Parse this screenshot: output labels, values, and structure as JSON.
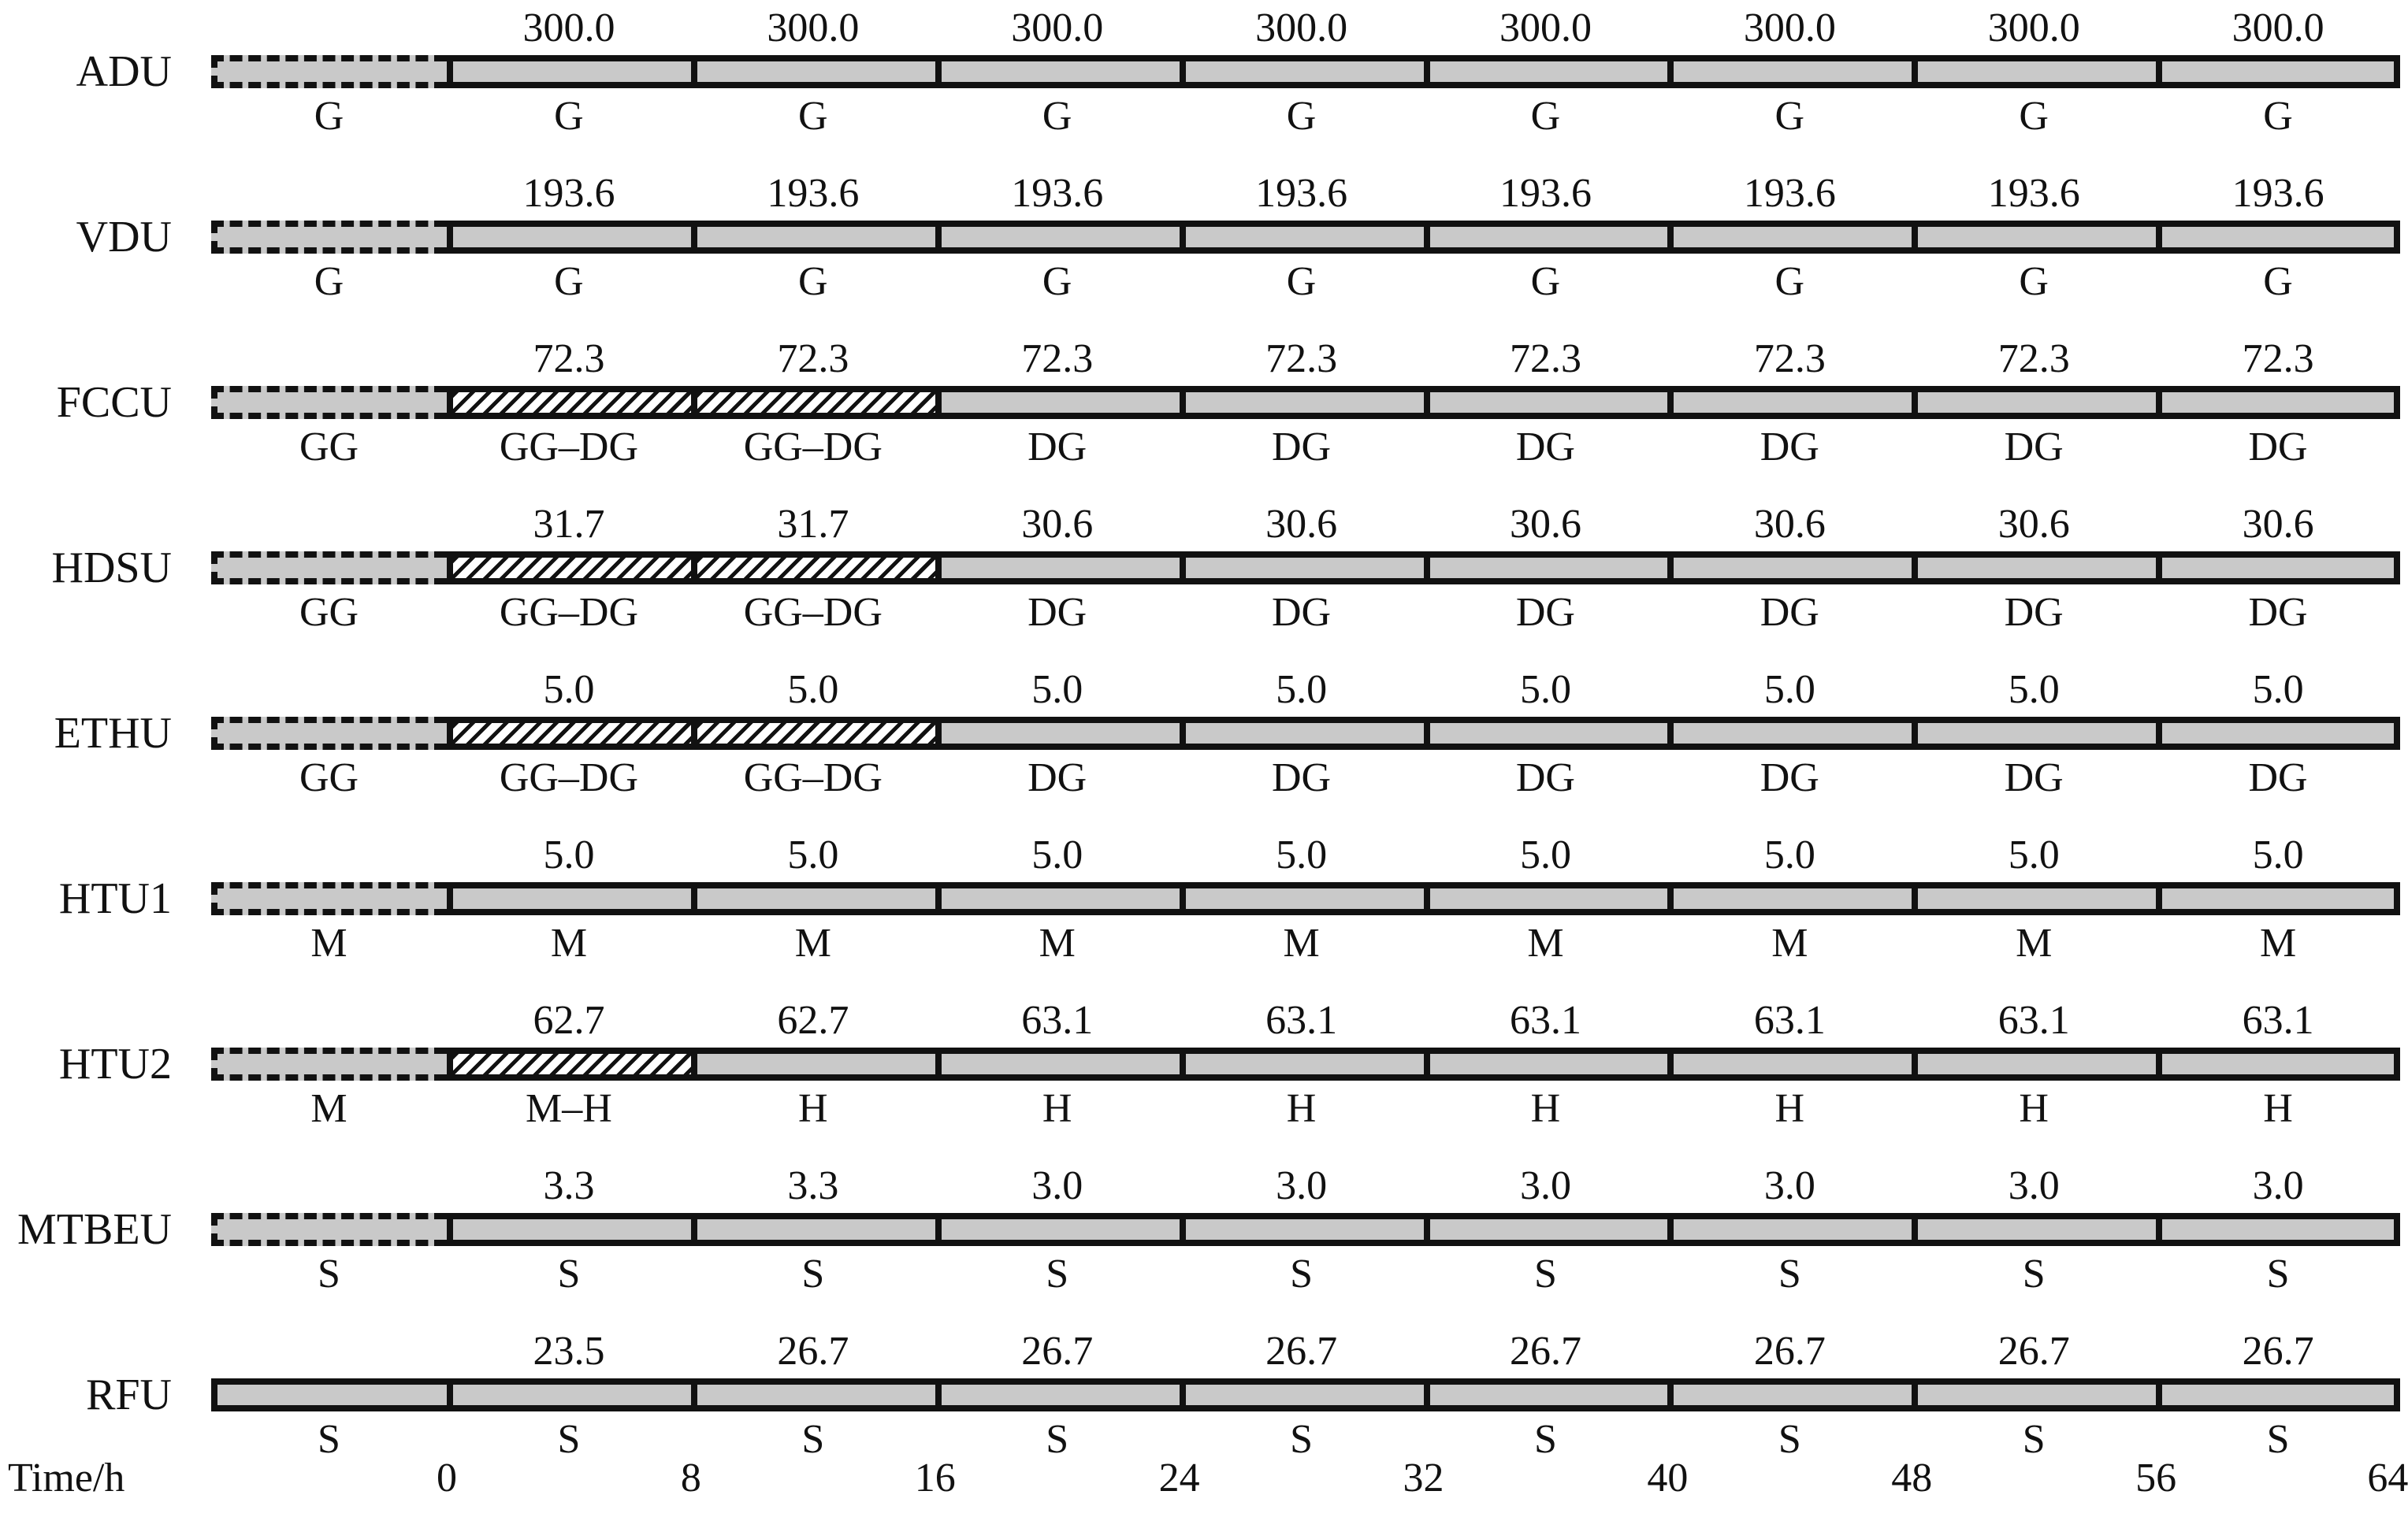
{
  "chart_data": {
    "type": "gantt",
    "title": "",
    "time_axis": {
      "label": "Time/h",
      "ticks": [
        "0",
        "8",
        "16",
        "24",
        "32",
        "40",
        "48",
        "56",
        "64"
      ],
      "hours_per_segment": 8,
      "range_hours": [
        0,
        64
      ],
      "has_pre_horizon_segment": true
    },
    "style": {
      "bar_fill": "#c9c9c9",
      "border_color": "#111111",
      "hatch": "black diagonal stripes on white",
      "pre_segment_border": "dashed (solid for RFU)"
    },
    "units": [
      {
        "name": "ADU",
        "pre": {
          "mode": "G",
          "style": "dashed"
        },
        "segments": [
          {
            "value": "300.0",
            "mode": "G",
            "style": "solid"
          },
          {
            "value": "300.0",
            "mode": "G",
            "style": "solid"
          },
          {
            "value": "300.0",
            "mode": "G",
            "style": "solid"
          },
          {
            "value": "300.0",
            "mode": "G",
            "style": "solid"
          },
          {
            "value": "300.0",
            "mode": "G",
            "style": "solid"
          },
          {
            "value": "300.0",
            "mode": "G",
            "style": "solid"
          },
          {
            "value": "300.0",
            "mode": "G",
            "style": "solid"
          },
          {
            "value": "300.0",
            "mode": "G",
            "style": "solid"
          }
        ]
      },
      {
        "name": "VDU",
        "pre": {
          "mode": "G",
          "style": "dashed"
        },
        "segments": [
          {
            "value": "193.6",
            "mode": "G",
            "style": "solid"
          },
          {
            "value": "193.6",
            "mode": "G",
            "style": "solid"
          },
          {
            "value": "193.6",
            "mode": "G",
            "style": "solid"
          },
          {
            "value": "193.6",
            "mode": "G",
            "style": "solid"
          },
          {
            "value": "193.6",
            "mode": "G",
            "style": "solid"
          },
          {
            "value": "193.6",
            "mode": "G",
            "style": "solid"
          },
          {
            "value": "193.6",
            "mode": "G",
            "style": "solid"
          },
          {
            "value": "193.6",
            "mode": "G",
            "style": "solid"
          }
        ]
      },
      {
        "name": "FCCU",
        "pre": {
          "mode": "GG",
          "style": "dashed"
        },
        "segments": [
          {
            "value": "72.3",
            "mode": "GG–DG",
            "style": "hatched"
          },
          {
            "value": "72.3",
            "mode": "GG–DG",
            "style": "hatched"
          },
          {
            "value": "72.3",
            "mode": "DG",
            "style": "solid"
          },
          {
            "value": "72.3",
            "mode": "DG",
            "style": "solid"
          },
          {
            "value": "72.3",
            "mode": "DG",
            "style": "solid"
          },
          {
            "value": "72.3",
            "mode": "DG",
            "style": "solid"
          },
          {
            "value": "72.3",
            "mode": "DG",
            "style": "solid"
          },
          {
            "value": "72.3",
            "mode": "DG",
            "style": "solid"
          }
        ]
      },
      {
        "name": "HDSU",
        "pre": {
          "mode": "GG",
          "style": "dashed"
        },
        "segments": [
          {
            "value": "31.7",
            "mode": "GG–DG",
            "style": "hatched"
          },
          {
            "value": "31.7",
            "mode": "GG–DG",
            "style": "hatched"
          },
          {
            "value": "30.6",
            "mode": "DG",
            "style": "solid"
          },
          {
            "value": "30.6",
            "mode": "DG",
            "style": "solid"
          },
          {
            "value": "30.6",
            "mode": "DG",
            "style": "solid"
          },
          {
            "value": "30.6",
            "mode": "DG",
            "style": "solid"
          },
          {
            "value": "30.6",
            "mode": "DG",
            "style": "solid"
          },
          {
            "value": "30.6",
            "mode": "DG",
            "style": "solid"
          }
        ]
      },
      {
        "name": "ETHU",
        "pre": {
          "mode": "GG",
          "style": "dashed"
        },
        "segments": [
          {
            "value": "5.0",
            "mode": "GG–DG",
            "style": "hatched"
          },
          {
            "value": "5.0",
            "mode": "GG–DG",
            "style": "hatched"
          },
          {
            "value": "5.0",
            "mode": "DG",
            "style": "solid"
          },
          {
            "value": "5.0",
            "mode": "DG",
            "style": "solid"
          },
          {
            "value": "5.0",
            "mode": "DG",
            "style": "solid"
          },
          {
            "value": "5.0",
            "mode": "DG",
            "style": "solid"
          },
          {
            "value": "5.0",
            "mode": "DG",
            "style": "solid"
          },
          {
            "value": "5.0",
            "mode": "DG",
            "style": "solid"
          }
        ]
      },
      {
        "name": "HTU1",
        "pre": {
          "mode": "M",
          "style": "dashed"
        },
        "segments": [
          {
            "value": "5.0",
            "mode": "M",
            "style": "solid"
          },
          {
            "value": "5.0",
            "mode": "M",
            "style": "solid"
          },
          {
            "value": "5.0",
            "mode": "M",
            "style": "solid"
          },
          {
            "value": "5.0",
            "mode": "M",
            "style": "solid"
          },
          {
            "value": "5.0",
            "mode": "M",
            "style": "solid"
          },
          {
            "value": "5.0",
            "mode": "M",
            "style": "solid"
          },
          {
            "value": "5.0",
            "mode": "M",
            "style": "solid"
          },
          {
            "value": "5.0",
            "mode": "M",
            "style": "solid"
          }
        ]
      },
      {
        "name": "HTU2",
        "pre": {
          "mode": "M",
          "style": "dashed"
        },
        "segments": [
          {
            "value": "62.7",
            "mode": "M–H",
            "style": "hatched"
          },
          {
            "value": "62.7",
            "mode": "H",
            "style": "solid"
          },
          {
            "value": "63.1",
            "mode": "H",
            "style": "solid"
          },
          {
            "value": "63.1",
            "mode": "H",
            "style": "solid"
          },
          {
            "value": "63.1",
            "mode": "H",
            "style": "solid"
          },
          {
            "value": "63.1",
            "mode": "H",
            "style": "solid"
          },
          {
            "value": "63.1",
            "mode": "H",
            "style": "solid"
          },
          {
            "value": "63.1",
            "mode": "H",
            "style": "solid"
          }
        ]
      },
      {
        "name": "MTBEU",
        "pre": {
          "mode": "S",
          "style": "dashed"
        },
        "segments": [
          {
            "value": "3.3",
            "mode": "S",
            "style": "solid"
          },
          {
            "value": "3.3",
            "mode": "S",
            "style": "solid"
          },
          {
            "value": "3.0",
            "mode": "S",
            "style": "solid"
          },
          {
            "value": "3.0",
            "mode": "S",
            "style": "solid"
          },
          {
            "value": "3.0",
            "mode": "S",
            "style": "solid"
          },
          {
            "value": "3.0",
            "mode": "S",
            "style": "solid"
          },
          {
            "value": "3.0",
            "mode": "S",
            "style": "solid"
          },
          {
            "value": "3.0",
            "mode": "S",
            "style": "solid"
          }
        ]
      },
      {
        "name": "RFU",
        "pre": {
          "mode": "S",
          "style": "solid"
        },
        "segments": [
          {
            "value": "23.5",
            "mode": "S",
            "style": "solid"
          },
          {
            "value": "26.7",
            "mode": "S",
            "style": "solid"
          },
          {
            "value": "26.7",
            "mode": "S",
            "style": "solid"
          },
          {
            "value": "26.7",
            "mode": "S",
            "style": "solid"
          },
          {
            "value": "26.7",
            "mode": "S",
            "style": "solid"
          },
          {
            "value": "26.7",
            "mode": "S",
            "style": "solid"
          },
          {
            "value": "26.7",
            "mode": "S",
            "style": "solid"
          },
          {
            "value": "26.7",
            "mode": "S",
            "style": "solid"
          }
        ]
      }
    ]
  }
}
